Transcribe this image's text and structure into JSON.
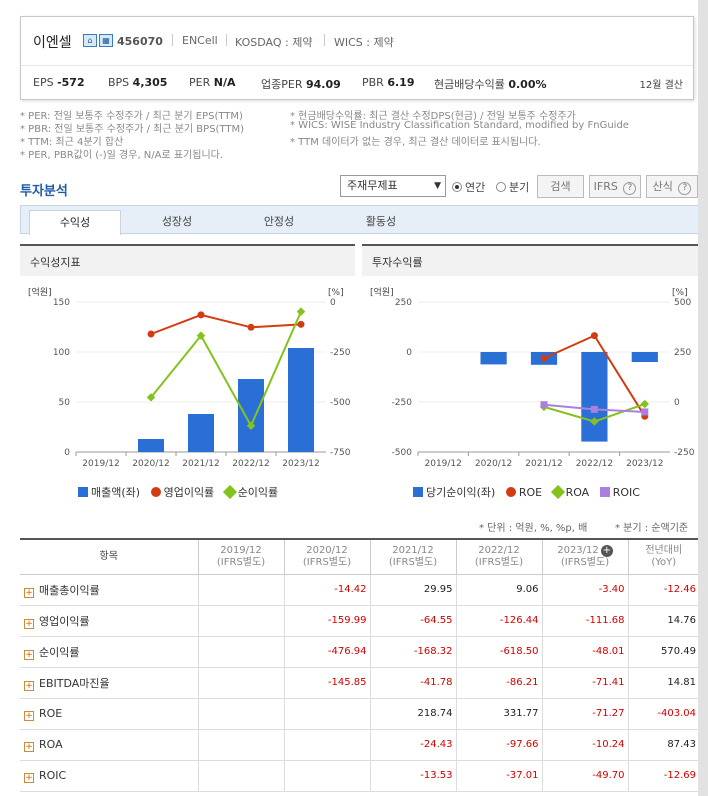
{
  "header": {
    "company_name": "이엔셀",
    "stock_code": "456070",
    "en_name": "ENCell",
    "market": "KOSDAQ : 제약",
    "wics": "WICS : 제약",
    "icon_home": "home-icon",
    "icon_building": "building-icon",
    "metrics": [
      {
        "label": "EPS",
        "value": "-572"
      },
      {
        "label": "BPS",
        "value": "4,305"
      },
      {
        "label": "PER",
        "value": "N/A"
      },
      {
        "label": "업종PER",
        "value": "94.09"
      },
      {
        "label": "PBR",
        "value": "6.19"
      },
      {
        "label": "현금배당수익률",
        "value": "0.00%"
      }
    ],
    "fiscal": "12월 결산"
  },
  "notes": {
    "left": [
      "* PER: 전일 보통주 수정주가 / 최근 분기 EPS(TTM)",
      "* PBR: 전일 보통주 수정주가 / 최근 분기 BPS(TTM)",
      "* TTM: 최근 4분기 합산",
      "* PER, PBR값이 (-)일 경우, N/A로 표기됩니다."
    ],
    "right": [
      "* 현금배당수익률: 최근 결산 수정DPS(현금) / 전일 보통주 수정주가",
      "* WICS: WISE Industry Classification Standard, modified by FnGuide",
      "* TTM 데이터가 없는 경우, 최근 결산 데이터로 표시됩니다."
    ]
  },
  "analysis": {
    "title": "투자분석",
    "report_select": "주재무제표",
    "radio_annual": "연간",
    "radio_quarter": "분기",
    "search_button": "검색",
    "ifrs_button": "IFRS",
    "formula_button": "산식",
    "help_glyph": "?",
    "caret": "▼"
  },
  "tabs": [
    "수익성",
    "성장성",
    "안정성",
    "활동성"
  ],
  "charts": {
    "left_title": "수익성지표",
    "right_title": "투자수익률",
    "left_axis_left_unit": "[억원]",
    "left_axis_right_unit": "[%]",
    "right_axis_left_unit": "[억원]",
    "right_axis_right_unit": "[%]",
    "left_legend": [
      "매출액(좌)",
      "영업이익률",
      "순이익률"
    ],
    "right_legend": [
      "당기순이익(좌)",
      "ROE",
      "ROA",
      "ROIC"
    ]
  },
  "chart_data": [
    {
      "type": "bar",
      "title": "수익성지표",
      "categories": [
        "2019/12",
        "2020/12",
        "2021/12",
        "2022/12",
        "2023/12"
      ],
      "yticks_left": [
        "150",
        "100",
        "50",
        "0"
      ],
      "yticks_right": [
        "0",
        "-250",
        "-500",
        "-750"
      ],
      "ylim_left": [
        0,
        150
      ],
      "ylim_right": [
        -750,
        0
      ],
      "colors": {
        "bar": "#2a6fd6",
        "line1": "#d23c12",
        "line2": "#84c21e"
      },
      "series": [
        {
          "name": "매출액(좌)",
          "axis": "left",
          "kind": "bar",
          "values": [
            null,
            13,
            38,
            73,
            104
          ]
        },
        {
          "name": "영업이익률",
          "axis": "right",
          "kind": "line",
          "values": [
            null,
            -159.99,
            -64.55,
            -126.44,
            -111.68
          ]
        },
        {
          "name": "순이익률",
          "axis": "right",
          "kind": "line",
          "values": [
            null,
            -476.94,
            -168.32,
            -618.5,
            -48.01
          ]
        }
      ]
    },
    {
      "type": "bar",
      "title": "투자수익률",
      "categories": [
        "2019/12",
        "2020/12",
        "2021/12",
        "2022/12",
        "2023/12"
      ],
      "yticks_left": [
        "250",
        "0",
        "-250",
        "-500"
      ],
      "yticks_right": [
        "500",
        "250",
        "0",
        "-250"
      ],
      "ylim_left": [
        -500,
        250
      ],
      "ylim_right": [
        -250,
        500
      ],
      "colors": {
        "bar": "#2a6fd6",
        "line1": "#d23c12",
        "line2": "#84c21e",
        "line3": "#a97fe0"
      },
      "series": [
        {
          "name": "당기순이익(좌)",
          "axis": "left",
          "kind": "bar",
          "values": [
            null,
            -62,
            -64,
            -448,
            -50
          ]
        },
        {
          "name": "ROE",
          "axis": "right",
          "kind": "line",
          "values": [
            null,
            null,
            218.74,
            331.77,
            -71.27
          ]
        },
        {
          "name": "ROA",
          "axis": "right",
          "kind": "line",
          "values": [
            null,
            null,
            -24.43,
            -97.66,
            -10.24
          ]
        },
        {
          "name": "ROIC",
          "axis": "right",
          "kind": "line",
          "values": [
            null,
            null,
            -13.53,
            -37.01,
            -49.7
          ]
        }
      ]
    }
  ],
  "table": {
    "unit_note": "* 단위 : 억원, %, %p, 배",
    "quarter_note": "* 분기 : 순액기준",
    "add_glyph": "+",
    "columns": [
      {
        "main": "항목",
        "sub": ""
      },
      {
        "main": "2019/12",
        "sub": "(IFRS별도)"
      },
      {
        "main": "2020/12",
        "sub": "(IFRS별도)"
      },
      {
        "main": "2021/12",
        "sub": "(IFRS별도)"
      },
      {
        "main": "2022/12",
        "sub": "(IFRS별도)"
      },
      {
        "main": "2023/12",
        "sub": "(IFRS별도)"
      },
      {
        "main": "전년대비",
        "sub": "(YoY)"
      }
    ],
    "rows": [
      {
        "label": "매출총이익률",
        "values": [
          "",
          "-14.42",
          "29.95",
          "9.06",
          "-3.40",
          "-12.46"
        ]
      },
      {
        "label": "영업이익률",
        "values": [
          "",
          "-159.99",
          "-64.55",
          "-126.44",
          "-111.68",
          "14.76"
        ]
      },
      {
        "label": "순이익률",
        "values": [
          "",
          "-476.94",
          "-168.32",
          "-618.50",
          "-48.01",
          "570.49"
        ]
      },
      {
        "label": "EBITDA마진율",
        "values": [
          "",
          "-145.85",
          "-41.78",
          "-86.21",
          "-71.41",
          "14.81"
        ]
      },
      {
        "label": "ROE",
        "values": [
          "",
          "",
          "218.74",
          "331.77",
          "-71.27",
          "-403.04"
        ]
      },
      {
        "label": "ROA",
        "values": [
          "",
          "",
          "-24.43",
          "-97.66",
          "-10.24",
          "87.43"
        ]
      },
      {
        "label": "ROIC",
        "values": [
          "",
          "",
          "-13.53",
          "-37.01",
          "-49.70",
          "-12.69"
        ]
      }
    ]
  }
}
